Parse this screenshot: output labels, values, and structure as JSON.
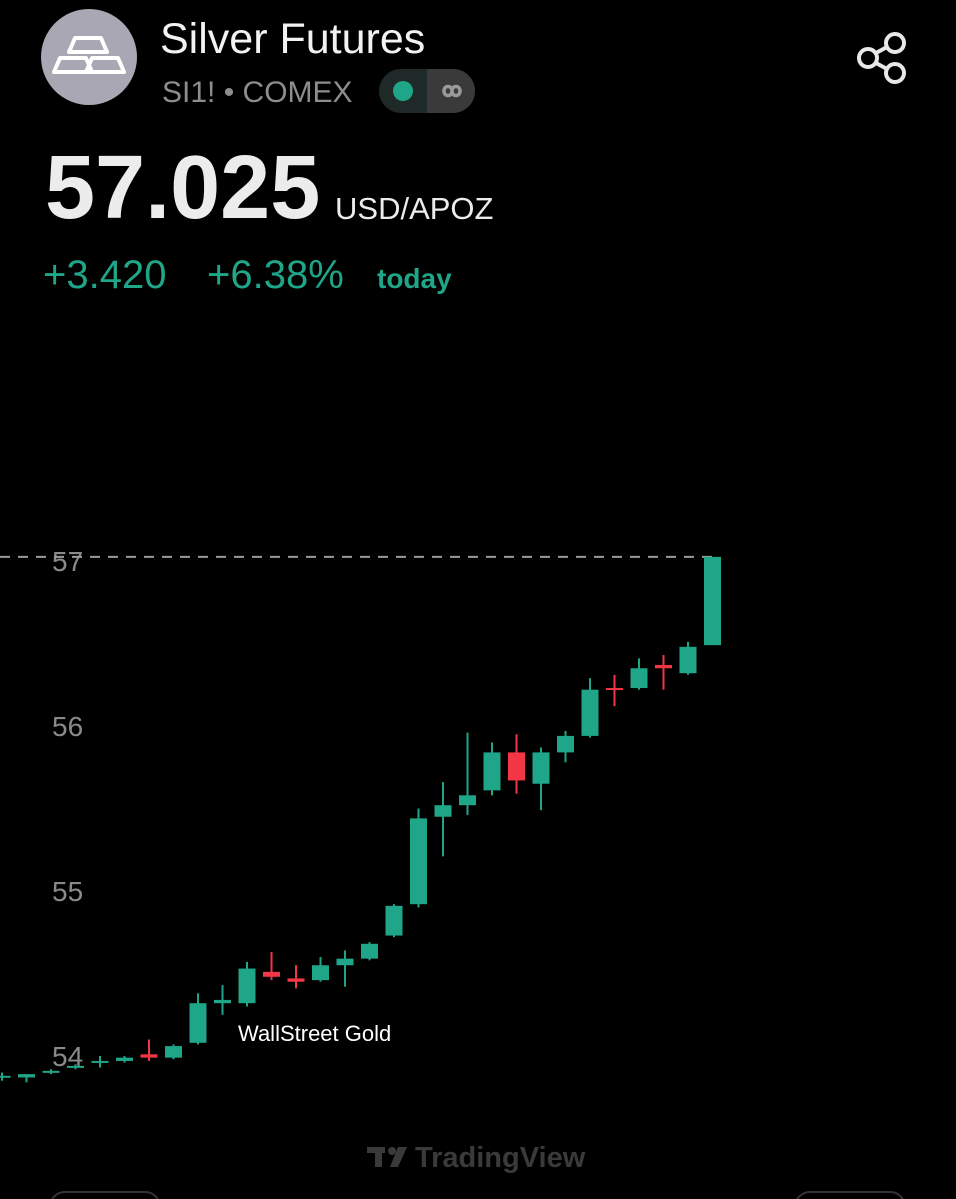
{
  "header": {
    "title": "Silver Futures",
    "subtitle": "SI1! • COMEX",
    "price": "57.025",
    "unit": "USD/APOZ",
    "change": "+3.420",
    "change_pct": "+6.38%",
    "period": "today"
  },
  "chart_data": {
    "type": "candlestick",
    "categories": [
      null,
      null,
      null,
      null,
      null,
      null,
      null,
      null,
      null,
      null,
      null,
      null,
      null,
      null,
      null,
      null,
      null,
      null,
      null,
      null,
      null,
      null,
      null,
      null,
      null,
      null,
      null,
      null,
      null,
      null
    ],
    "open": [
      53.87,
      53.87,
      53.9,
      53.93,
      53.96,
      53.97,
      54.01,
      53.99,
      54.08,
      54.32,
      54.32,
      54.51,
      54.47,
      54.46,
      54.55,
      54.59,
      54.73,
      54.92,
      55.45,
      55.52,
      55.61,
      55.84,
      55.65,
      55.84,
      55.94,
      56.23,
      56.23,
      56.37,
      56.32,
      56.49
    ],
    "high": [
      53.9,
      53.89,
      53.92,
      53.95,
      54.0,
      54.0,
      54.1,
      54.07,
      54.38,
      54.43,
      54.57,
      54.63,
      54.55,
      54.6,
      54.64,
      54.69,
      54.92,
      55.5,
      55.66,
      55.96,
      55.9,
      55.95,
      55.87,
      55.97,
      56.29,
      56.31,
      56.41,
      56.43,
      56.51,
      57.025
    ],
    "low": [
      53.85,
      53.84,
      53.89,
      53.92,
      53.93,
      53.96,
      53.97,
      53.98,
      54.07,
      54.25,
      54.3,
      54.46,
      54.41,
      54.45,
      54.42,
      54.58,
      54.72,
      54.9,
      55.21,
      55.46,
      55.58,
      55.59,
      55.49,
      55.78,
      55.93,
      56.12,
      56.22,
      56.22,
      56.31,
      56.49
    ],
    "close": [
      53.88,
      53.89,
      53.91,
      53.94,
      53.97,
      53.99,
      53.99,
      54.06,
      54.32,
      54.34,
      54.53,
      54.48,
      54.45,
      54.55,
      54.59,
      54.68,
      54.91,
      55.44,
      55.52,
      55.58,
      55.84,
      55.67,
      55.84,
      55.94,
      56.22,
      56.22,
      56.35,
      56.35,
      56.48,
      57.025
    ],
    "up_color": "#1fa688",
    "down_color": "#f23645",
    "price_line": 57.025,
    "ylim": [
      53.6,
      58.5
    ],
    "yticks": [
      54,
      55,
      56,
      57
    ],
    "watermark": "WallStreet Gold",
    "brand": "TradingView"
  }
}
